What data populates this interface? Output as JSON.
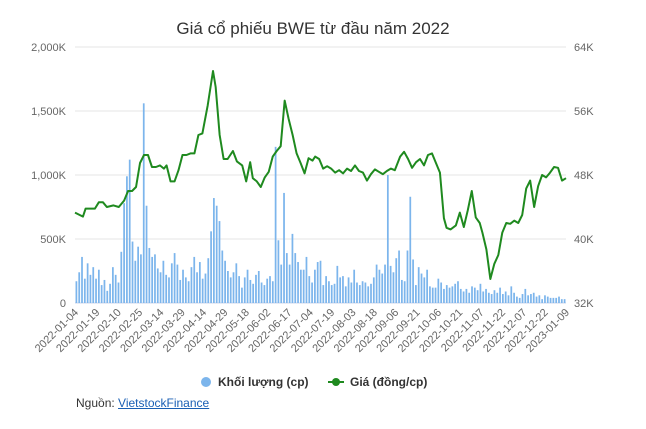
{
  "chart_data": {
    "type": "line",
    "title": "Giá cổ phiếu BWE từ đầu năm 2022",
    "x_tick_labels": [
      "2022-01-04",
      "2022-01-19",
      "2022-02-10",
      "2022-02-25",
      "2022-03-14",
      "2022-03-29",
      "2022-04-14",
      "2022-04-29",
      "2022-05-18",
      "2022-06-02",
      "2022-06-17",
      "2022-07-04",
      "2022-07-19",
      "2022-08-03",
      "2022-08-18",
      "2022-09-06",
      "2022-09-21",
      "2022-10-06",
      "2022-10-21",
      "2022-11-07",
      "2022-11-22",
      "2022-12-07",
      "2022-12-22",
      "2023-01-09"
    ],
    "y_left_ticks": [
      "0",
      "500K",
      "1,000K",
      "1,500K",
      "2,000K"
    ],
    "y_left_range": [
      0,
      2000000
    ],
    "y_right_ticks": [
      "32K",
      "40K",
      "48K",
      "56K",
      "64K"
    ],
    "y_right_range": [
      32000,
      64000
    ],
    "grid": true,
    "legend_position": "bottom",
    "colors": {
      "volume": "#7cb5ec",
      "price": "#1f8a1f"
    },
    "series": [
      {
        "name": "Khối lượng (cp)",
        "type": "bar",
        "axis": "left",
        "values": [
          170000,
          240000,
          360000,
          190000,
          310000,
          220000,
          280000,
          190000,
          260000,
          140000,
          180000,
          95000,
          150000,
          280000,
          220000,
          160000,
          400000,
          780000,
          990000,
          1120000,
          480000,
          330000,
          440000,
          380000,
          1560000,
          760000,
          430000,
          360000,
          380000,
          270000,
          240000,
          330000,
          220000,
          200000,
          310000,
          390000,
          300000,
          180000,
          260000,
          200000,
          170000,
          280000,
          360000,
          240000,
          320000,
          190000,
          230000,
          350000,
          560000,
          820000,
          760000,
          640000,
          410000,
          330000,
          250000,
          200000,
          240000,
          310000,
          210000,
          120000,
          200000,
          260000,
          180000,
          150000,
          220000,
          250000,
          160000,
          140000,
          190000,
          210000,
          170000,
          1220000,
          490000,
          300000,
          860000,
          390000,
          300000,
          540000,
          390000,
          320000,
          260000,
          260000,
          360000,
          210000,
          160000,
          260000,
          320000,
          330000,
          140000,
          210000,
          170000,
          140000,
          150000,
          290000,
          200000,
          210000,
          130000,
          200000,
          160000,
          260000,
          160000,
          140000,
          170000,
          160000,
          130000,
          150000,
          200000,
          300000,
          260000,
          230000,
          300000,
          1000000,
          290000,
          240000,
          350000,
          410000,
          180000,
          170000,
          410000,
          830000,
          340000,
          140000,
          280000,
          230000,
          200000,
          260000,
          130000,
          120000,
          120000,
          190000,
          160000,
          110000,
          140000,
          120000,
          130000,
          150000,
          170000,
          110000,
          90000,
          110000,
          80000,
          130000,
          120000,
          100000,
          150000,
          90000,
          110000,
          80000,
          70000,
          100000,
          80000,
          120000,
          70000,
          90000,
          60000,
          130000,
          80000,
          50000,
          40000,
          70000,
          110000,
          60000,
          70000,
          80000,
          50000,
          60000,
          30000,
          60000,
          50000,
          40000,
          40000,
          40000,
          50000,
          30000,
          30000
        ]
      },
      {
        "name": "Giá (đồng/cp)",
        "type": "line",
        "axis": "right",
        "points": [
          [
            "2022-01-04",
            43300
          ],
          [
            "2022-01-10",
            42800
          ],
          [
            "2022-01-12",
            43800
          ],
          [
            "2022-01-19",
            43800
          ],
          [
            "2022-01-22",
            44600
          ],
          [
            "2022-01-25",
            44600
          ],
          [
            "2022-01-28",
            44000
          ],
          [
            "2022-02-02",
            44200
          ],
          [
            "2022-02-06",
            44000
          ],
          [
            "2022-02-10",
            44800
          ],
          [
            "2022-02-13",
            46000
          ],
          [
            "2022-02-16",
            46000
          ],
          [
            "2022-02-19",
            46500
          ],
          [
            "2022-02-22",
            49500
          ],
          [
            "2022-02-25",
            50500
          ],
          [
            "2022-02-28",
            50500
          ],
          [
            "2022-03-03",
            49000
          ],
          [
            "2022-03-06",
            49000
          ],
          [
            "2022-03-09",
            49200
          ],
          [
            "2022-03-12",
            48800
          ],
          [
            "2022-03-14",
            49200
          ],
          [
            "2022-03-17",
            47200
          ],
          [
            "2022-03-20",
            47200
          ],
          [
            "2022-03-23",
            48600
          ],
          [
            "2022-03-26",
            50500
          ],
          [
            "2022-03-29",
            50500
          ],
          [
            "2022-04-01",
            50700
          ],
          [
            "2022-04-04",
            50700
          ],
          [
            "2022-04-07",
            53000
          ],
          [
            "2022-04-10",
            53200
          ],
          [
            "2022-04-14",
            56700
          ],
          [
            "2022-04-18",
            61000
          ],
          [
            "2022-04-20",
            59000
          ],
          [
            "2022-04-23",
            53000
          ],
          [
            "2022-04-26",
            50000
          ],
          [
            "2022-04-29",
            50000
          ],
          [
            "2022-05-03",
            51000
          ],
          [
            "2022-05-06",
            49700
          ],
          [
            "2022-05-10",
            49200
          ],
          [
            "2022-05-13",
            47200
          ],
          [
            "2022-05-16",
            49600
          ],
          [
            "2022-05-18",
            47600
          ],
          [
            "2022-05-21",
            47200
          ],
          [
            "2022-05-24",
            46500
          ],
          [
            "2022-05-27",
            47700
          ],
          [
            "2022-05-30",
            48400
          ],
          [
            "2022-06-02",
            50300
          ],
          [
            "2022-06-05",
            51000
          ],
          [
            "2022-06-08",
            51600
          ],
          [
            "2022-06-11",
            57300
          ],
          [
            "2022-06-14",
            55000
          ],
          [
            "2022-06-17",
            53000
          ],
          [
            "2022-06-20",
            50700
          ],
          [
            "2022-06-23",
            49500
          ],
          [
            "2022-06-26",
            48200
          ],
          [
            "2022-06-29",
            50100
          ],
          [
            "2022-07-02",
            49800
          ],
          [
            "2022-07-04",
            50300
          ],
          [
            "2022-07-07",
            50000
          ],
          [
            "2022-07-10",
            48800
          ],
          [
            "2022-07-13",
            49100
          ],
          [
            "2022-07-16",
            48800
          ],
          [
            "2022-07-19",
            48300
          ],
          [
            "2022-07-22",
            48600
          ],
          [
            "2022-07-25",
            48200
          ],
          [
            "2022-07-28",
            48800
          ],
          [
            "2022-07-31",
            48500
          ],
          [
            "2022-08-03",
            49200
          ],
          [
            "2022-08-06",
            48500
          ],
          [
            "2022-08-09",
            48300
          ],
          [
            "2022-08-12",
            47300
          ],
          [
            "2022-08-15",
            48100
          ],
          [
            "2022-08-18",
            48700
          ],
          [
            "2022-08-21",
            48400
          ],
          [
            "2022-08-24",
            48100
          ],
          [
            "2022-08-27",
            48500
          ],
          [
            "2022-08-30",
            48800
          ],
          [
            "2022-09-02",
            48600
          ],
          [
            "2022-09-06",
            50300
          ],
          [
            "2022-09-09",
            50900
          ],
          [
            "2022-09-12",
            50000
          ],
          [
            "2022-09-15",
            48900
          ],
          [
            "2022-09-18",
            49600
          ],
          [
            "2022-09-21",
            50000
          ],
          [
            "2022-09-24",
            49200
          ],
          [
            "2022-09-27",
            50500
          ],
          [
            "2022-09-30",
            50700
          ],
          [
            "2022-10-03",
            49500
          ],
          [
            "2022-10-06",
            48300
          ],
          [
            "2022-10-09",
            42600
          ],
          [
            "2022-10-11",
            41400
          ],
          [
            "2022-10-14",
            41200
          ],
          [
            "2022-10-18",
            41700
          ],
          [
            "2022-10-21",
            43300
          ],
          [
            "2022-10-24",
            41500
          ],
          [
            "2022-10-27",
            43600
          ],
          [
            "2022-10-30",
            46000
          ],
          [
            "2022-11-02",
            42700
          ],
          [
            "2022-11-05",
            42000
          ],
          [
            "2022-11-07",
            40800
          ],
          [
            "2022-11-10",
            38700
          ],
          [
            "2022-11-13",
            35000
          ],
          [
            "2022-11-16",
            36900
          ],
          [
            "2022-11-19",
            38000
          ],
          [
            "2022-11-22",
            40800
          ],
          [
            "2022-11-25",
            42000
          ],
          [
            "2022-11-28",
            41900
          ],
          [
            "2022-12-01",
            42300
          ],
          [
            "2022-12-04",
            42000
          ],
          [
            "2022-12-07",
            43000
          ],
          [
            "2022-12-10",
            46300
          ],
          [
            "2022-12-13",
            47300
          ],
          [
            "2022-12-16",
            44000
          ],
          [
            "2022-12-19",
            46600
          ],
          [
            "2022-12-22",
            48000
          ],
          [
            "2022-12-25",
            47700
          ],
          [
            "2022-12-28",
            48300
          ],
          [
            "2022-12-31",
            49000
          ],
          [
            "2023-01-03",
            48900
          ],
          [
            "2023-01-06",
            47300
          ],
          [
            "2023-01-09",
            47600
          ]
        ]
      }
    ]
  },
  "legend": [
    {
      "label": "Khối lượng (cp)",
      "color": "#7cb5ec",
      "marker": "circle"
    },
    {
      "label": "Giá (đồng/cp)",
      "color": "#1f8a1f",
      "marker": "line-dot"
    }
  ],
  "source": {
    "prefix": "Nguồn: ",
    "link_text": "VietstockFinance"
  }
}
